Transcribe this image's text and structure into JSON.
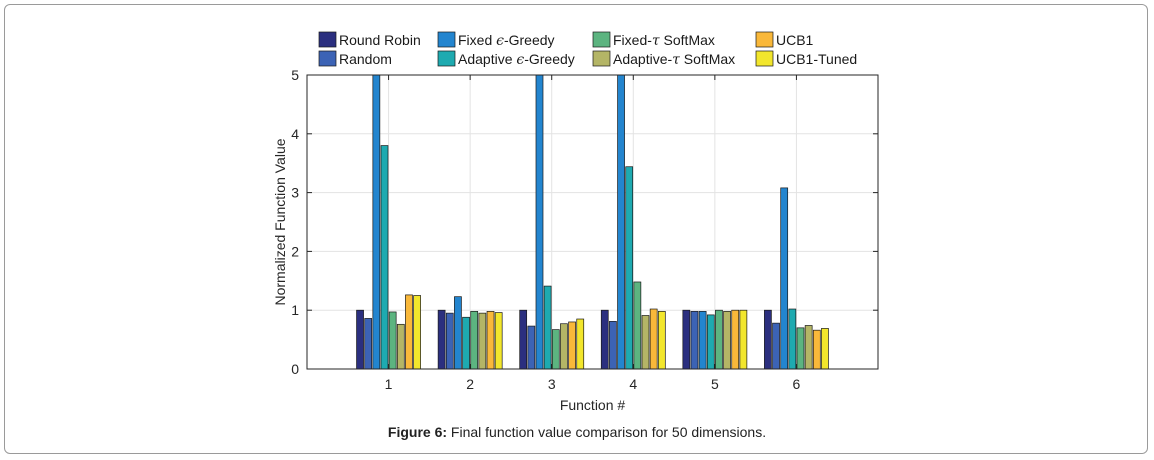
{
  "chart_data": {
    "type": "bar",
    "title": "",
    "xlabel": "Function #",
    "ylabel": "Normalized Function Value",
    "ylim": [
      0,
      5
    ],
    "yticks": [
      0,
      1,
      2,
      3,
      4,
      5
    ],
    "grid": true,
    "legend_position": "top",
    "categories": [
      "1",
      "2",
      "3",
      "4",
      "5",
      "6"
    ],
    "series": [
      {
        "name": "Round Robin",
        "color": "#2b2f7f",
        "values": [
          1.0,
          1.0,
          1.0,
          1.0,
          1.0,
          1.0
        ]
      },
      {
        "name": "Random",
        "color": "#3c63b5",
        "values": [
          0.86,
          0.95,
          0.73,
          0.81,
          0.98,
          0.78
        ]
      },
      {
        "name": "Fixed ε-Greedy",
        "color": "#2385cf",
        "values": [
          5.0,
          1.23,
          5.0,
          5.0,
          0.98,
          3.08
        ]
      },
      {
        "name": "Adaptive ε-Greedy",
        "color": "#1eaab0",
        "values": [
          3.8,
          0.88,
          1.41,
          3.44,
          0.92,
          1.02
        ]
      },
      {
        "name": "Fixed-τ SoftMax",
        "color": "#5cb480",
        "values": [
          0.97,
          0.98,
          0.67,
          1.48,
          1.0,
          0.7
        ]
      },
      {
        "name": "Adaptive-τ SoftMax",
        "color": "#b4b566",
        "values": [
          0.76,
          0.95,
          0.77,
          0.91,
          0.98,
          0.74
        ]
      },
      {
        "name": "UCB1",
        "color": "#f9b83a",
        "values": [
          1.26,
          0.98,
          0.8,
          1.02,
          1.0,
          0.66
        ]
      },
      {
        "name": "UCB1-Tuned",
        "color": "#f2e62c",
        "values": [
          1.25,
          0.96,
          0.85,
          0.98,
          1.0,
          0.69
        ]
      }
    ],
    "legend_labels": [
      {
        "pre": "Round Robin",
        "sym": "",
        "post": ""
      },
      {
        "pre": "Random",
        "sym": "",
        "post": ""
      },
      {
        "pre": "Fixed ",
        "sym": "ϵ",
        "post": "-Greedy"
      },
      {
        "pre": "Adaptive ",
        "sym": "ϵ",
        "post": "-Greedy"
      },
      {
        "pre": "Fixed-",
        "sym": "τ",
        "post": " SoftMax"
      },
      {
        "pre": "Adaptive-",
        "sym": "τ",
        "post": " SoftMax"
      },
      {
        "pre": "UCB1",
        "sym": "",
        "post": ""
      },
      {
        "pre": "UCB1-Tuned",
        "sym": "",
        "post": ""
      }
    ]
  },
  "caption": {
    "label": "Figure 6:",
    "text": " Final function value comparison for 50 dimensions."
  }
}
